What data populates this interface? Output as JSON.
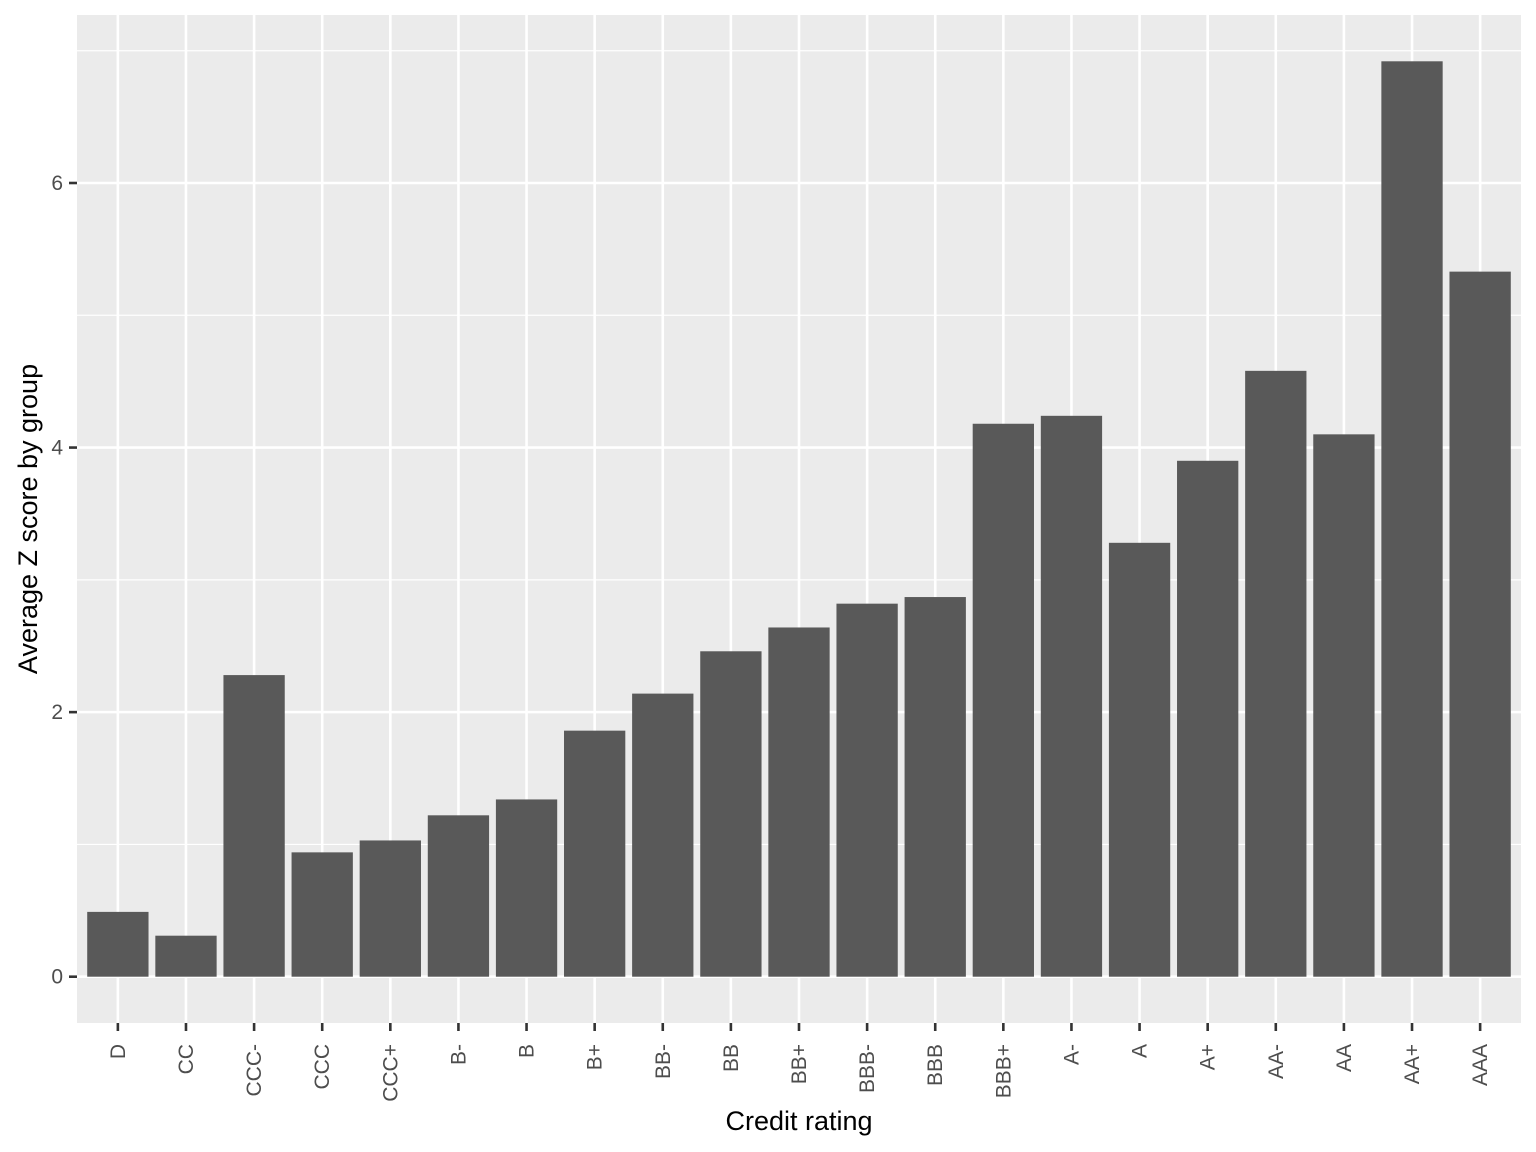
{
  "chart_data": {
    "type": "bar",
    "title": "",
    "xlabel": "Credit rating",
    "ylabel": "Average Z score by group",
    "categories": [
      "D",
      "CC",
      "CCC-",
      "CCC",
      "CCC+",
      "B-",
      "B",
      "B+",
      "BB-",
      "BB",
      "BB+",
      "BBB-",
      "BBB",
      "BBB+",
      "A-",
      "A",
      "A+",
      "AA-",
      "AA",
      "AA+",
      "AAA"
    ],
    "values": [
      0.49,
      0.31,
      2.28,
      0.94,
      1.03,
      1.22,
      1.34,
      1.86,
      2.14,
      2.46,
      2.64,
      2.82,
      2.87,
      4.18,
      4.24,
      3.28,
      3.9,
      4.58,
      4.1,
      6.92,
      5.33
    ],
    "yticks": [
      0,
      2,
      4,
      6
    ],
    "ylim": [
      -0.35,
      7.27
    ],
    "grid": true,
    "colors": {
      "bar": "#595959",
      "panel": "#ebebeb",
      "grid": "#ffffff",
      "tick": "#333333"
    }
  }
}
